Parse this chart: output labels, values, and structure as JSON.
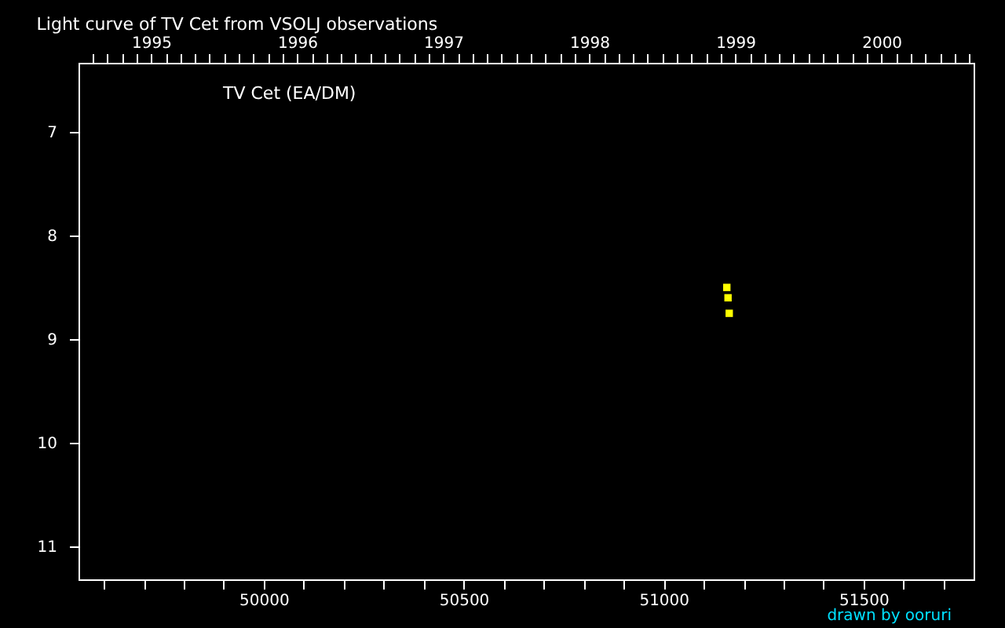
{
  "chart_data": {
    "type": "scatter",
    "title": "Light curve of TV Cet from VSOLJ observations",
    "annotations": [
      "TV Cet (EA/DM)",
      "drawn by ooruri"
    ],
    "x": [
      51158,
      51161,
      51164
    ],
    "series": [
      {
        "color": "#ffff00",
        "values": [
          8.5,
          8.6,
          8.75
        ]
      }
    ],
    "marker": "square",
    "xlim": [
      49537,
      51775
    ],
    "xticks": [
      {
        "value": 49600,
        "label": null
      },
      {
        "value": 49700,
        "label": null
      },
      {
        "value": 49800,
        "label": null
      },
      {
        "value": 49900,
        "label": null
      },
      50000,
      {
        "value": 50100,
        "label": null
      },
      {
        "value": 50200,
        "label": null
      },
      {
        "value": 50300,
        "label": null
      },
      {
        "value": 50400,
        "label": null
      },
      50500,
      {
        "value": 50600,
        "label": null
      },
      {
        "value": 50700,
        "label": null
      },
      {
        "value": 50800,
        "label": null
      },
      {
        "value": 50900,
        "label": null
      },
      51000,
      {
        "value": 51100,
        "label": null
      },
      {
        "value": 51200,
        "label": null
      },
      {
        "value": 51300,
        "label": null
      },
      {
        "value": 51400,
        "label": null
      },
      51500,
      {
        "value": 51600,
        "label": null
      },
      {
        "value": 51700,
        "label": null
      }
    ],
    "x2lim": [
      1994.503,
      2000.631
    ],
    "x2ticks": [
      {
        "value": 1994.6,
        "label": null
      },
      {
        "value": 1994.7,
        "label": null
      },
      {
        "value": 1994.8,
        "label": null
      },
      {
        "value": 1994.9,
        "label": null
      },
      1995,
      {
        "value": 1995.1,
        "label": null
      },
      {
        "value": 1995.2,
        "label": null
      },
      {
        "value": 1995.3,
        "label": null
      },
      {
        "value": 1995.4,
        "label": null
      },
      {
        "value": 1995.5,
        "label": null
      },
      {
        "value": 1995.6,
        "label": null
      },
      {
        "value": 1995.7,
        "label": null
      },
      {
        "value": 1995.8,
        "label": null
      },
      {
        "value": 1995.9,
        "label": null
      },
      1996,
      {
        "value": 1996.1,
        "label": null
      },
      {
        "value": 1996.2,
        "label": null
      },
      {
        "value": 1996.3,
        "label": null
      },
      {
        "value": 1996.4,
        "label": null
      },
      {
        "value": 1996.5,
        "label": null
      },
      {
        "value": 1996.6,
        "label": null
      },
      {
        "value": 1996.7,
        "label": null
      },
      {
        "value": 1996.8,
        "label": null
      },
      {
        "value": 1996.9,
        "label": null
      },
      1997,
      {
        "value": 1997.1,
        "label": null
      },
      {
        "value": 1997.2,
        "label": null
      },
      {
        "value": 1997.3,
        "label": null
      },
      {
        "value": 1997.4,
        "label": null
      },
      {
        "value": 1997.5,
        "label": null
      },
      {
        "value": 1997.6,
        "label": null
      },
      {
        "value": 1997.7,
        "label": null
      },
      {
        "value": 1997.8,
        "label": null
      },
      {
        "value": 1997.9,
        "label": null
      },
      1998,
      {
        "value": 1998.1,
        "label": null
      },
      {
        "value": 1998.2,
        "label": null
      },
      {
        "value": 1998.3,
        "label": null
      },
      {
        "value": 1998.4,
        "label": null
      },
      {
        "value": 1998.5,
        "label": null
      },
      {
        "value": 1998.6,
        "label": null
      },
      {
        "value": 1998.7,
        "label": null
      },
      {
        "value": 1998.8,
        "label": null
      },
      {
        "value": 1998.9,
        "label": null
      },
      1999,
      {
        "value": 1999.1,
        "label": null
      },
      {
        "value": 1999.2,
        "label": null
      },
      {
        "value": 1999.3,
        "label": null
      },
      {
        "value": 1999.4,
        "label": null
      },
      {
        "value": 1999.5,
        "label": null
      },
      {
        "value": 1999.6,
        "label": null
      },
      {
        "value": 1999.7,
        "label": null
      },
      {
        "value": 1999.8,
        "label": null
      },
      {
        "value": 1999.9,
        "label": null
      },
      2000,
      {
        "value": 2000.1,
        "label": null
      },
      {
        "value": 2000.2,
        "label": null
      },
      {
        "value": 2000.3,
        "label": null
      },
      {
        "value": 2000.4,
        "label": null
      },
      {
        "value": 2000.5,
        "label": null
      },
      {
        "value": 2000.6,
        "label": null
      }
    ],
    "ylim": [
      11.32,
      6.33
    ],
    "yticks": [
      7,
      8,
      9,
      10,
      11
    ]
  }
}
